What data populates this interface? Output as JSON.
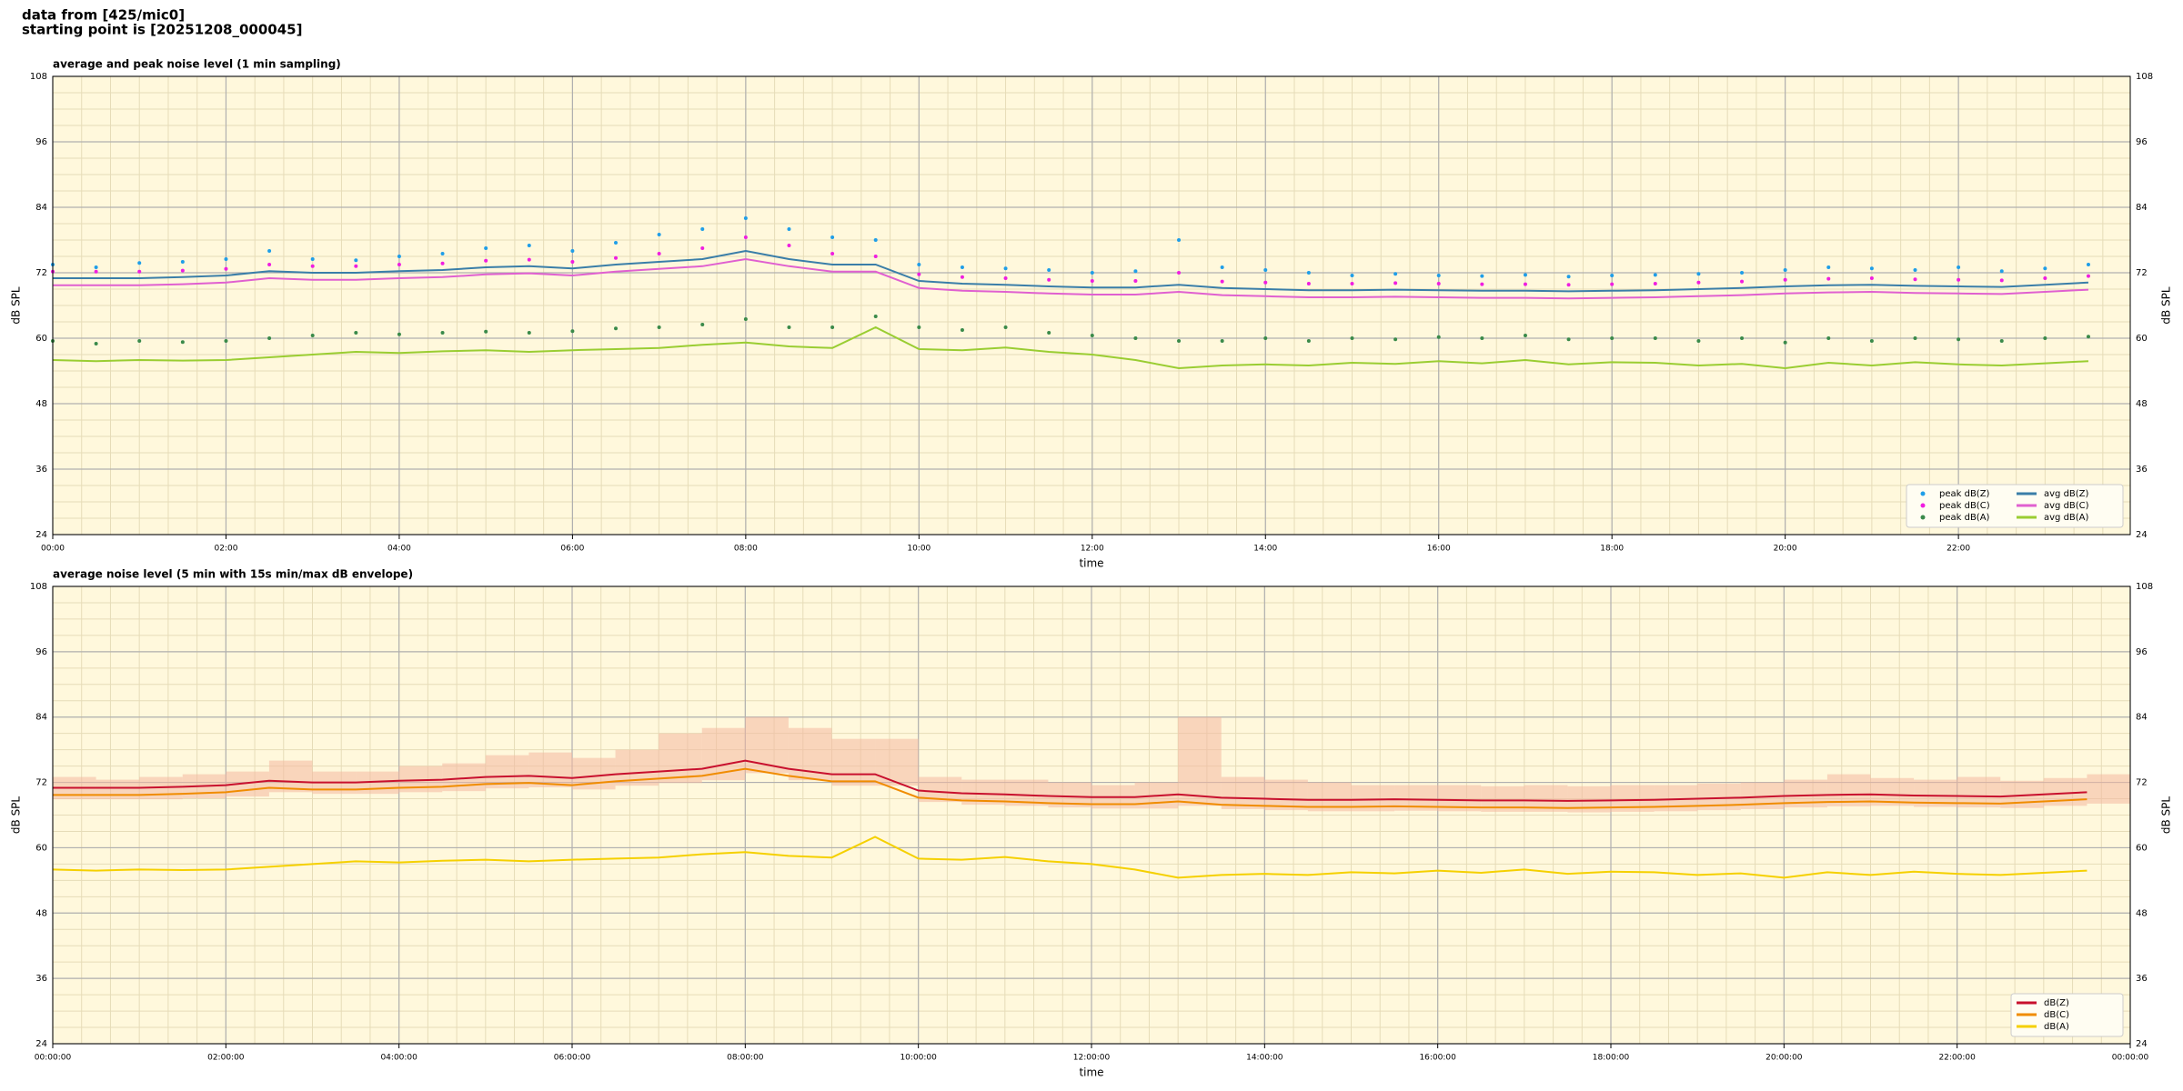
{
  "header": {
    "line1": "data from [425/mic0]",
    "line2": "starting point is [20251208_000045]"
  },
  "chart_data": [
    {
      "type": "line",
      "title": "average and peak noise level (1 min sampling)",
      "xlabel": "time",
      "ylabel": "dB SPL",
      "grid": true,
      "minor_grid": true,
      "legend": "lower right",
      "legend_columns": 2,
      "background": "#fff8dc",
      "x": [
        "00:00",
        "00:30",
        "01:00",
        "01:30",
        "02:00",
        "02:30",
        "03:00",
        "03:30",
        "04:00",
        "04:30",
        "05:00",
        "05:30",
        "06:00",
        "06:30",
        "07:00",
        "07:30",
        "08:00",
        "08:30",
        "09:00",
        "09:30",
        "10:00",
        "10:30",
        "11:00",
        "11:30",
        "12:00",
        "12:30",
        "13:00",
        "13:30",
        "14:00",
        "14:30",
        "15:00",
        "15:30",
        "16:00",
        "16:30",
        "17:00",
        "17:30",
        "18:00",
        "18:30",
        "19:00",
        "19:30",
        "20:00",
        "20:30",
        "21:00",
        "21:30",
        "22:00",
        "22:30",
        "23:00",
        "23:30"
      ],
      "xlim": [
        "00:00",
        "23:59"
      ],
      "xticks": [
        "00:00",
        "02:00",
        "04:00",
        "06:00",
        "08:00",
        "10:00",
        "12:00",
        "14:00",
        "16:00",
        "18:00",
        "20:00",
        "22:00"
      ],
      "ylim": [
        24,
        108
      ],
      "yticks": [
        24,
        36,
        48,
        60,
        72,
        84,
        96,
        108
      ],
      "series": [
        {
          "name": "peak dB(Z)",
          "kind": "scatter",
          "color": "#1f9ee8",
          "values": [
            73.5,
            73,
            73.8,
            74,
            74.5,
            76,
            74.5,
            74.3,
            75,
            75.5,
            76.5,
            77,
            76,
            77.5,
            79,
            80,
            82,
            80,
            78.5,
            78,
            73.5,
            73,
            72.8,
            72.5,
            72,
            72.3,
            78,
            73,
            72.5,
            72,
            71.5,
            71.8,
            71.5,
            71.4,
            71.6,
            71.3,
            71.5,
            71.6,
            71.8,
            72,
            72.5,
            73,
            72.8,
            72.5,
            73,
            72.3,
            72.8,
            73.5
          ]
        },
        {
          "name": "peak dB(C)",
          "kind": "scatter",
          "color": "#f01ee0",
          "values": [
            72.2,
            72.2,
            72.2,
            72.4,
            72.7,
            73.5,
            73.2,
            73.2,
            73.5,
            73.7,
            74.2,
            74.4,
            74,
            74.7,
            75.5,
            76.5,
            78.5,
            77,
            75.5,
            75,
            71.7,
            71.2,
            71,
            70.7,
            70.5,
            70.5,
            72,
            70.4,
            70.2,
            70,
            70,
            70.1,
            70,
            69.9,
            69.9,
            69.8,
            69.9,
            70,
            70.2,
            70.4,
            70.7,
            70.9,
            71,
            70.8,
            70.7,
            70.6,
            71,
            71.4
          ]
        },
        {
          "name": "peak dB(A)",
          "kind": "scatter",
          "color": "#3a8a4a",
          "values": [
            59.5,
            59,
            59.5,
            59.3,
            59.5,
            60,
            60.5,
            61,
            60.7,
            61,
            61.2,
            61,
            61.3,
            61.8,
            62,
            62.5,
            63.5,
            62,
            62,
            64,
            62,
            61.5,
            62,
            61,
            60.5,
            60,
            59.5,
            59.5,
            60,
            59.5,
            60,
            59.8,
            60.2,
            60,
            60.5,
            59.8,
            60,
            60,
            59.5,
            60,
            59.2,
            60,
            59.5,
            60,
            59.8,
            59.5,
            60,
            60.3
          ]
        },
        {
          "name": "avg dB(Z)",
          "kind": "line",
          "color": "#3a7ea8",
          "values": [
            71,
            71,
            71,
            71.2,
            71.5,
            72.3,
            72,
            72,
            72.3,
            72.5,
            73,
            73.2,
            72.8,
            73.5,
            74,
            74.5,
            76,
            74.5,
            73.5,
            73.5,
            70.5,
            70,
            69.8,
            69.5,
            69.3,
            69.3,
            69.8,
            69.2,
            69,
            68.8,
            68.8,
            68.9,
            68.8,
            68.7,
            68.7,
            68.6,
            68.7,
            68.8,
            69,
            69.2,
            69.5,
            69.7,
            69.8,
            69.6,
            69.5,
            69.4,
            69.8,
            70.2
          ]
        },
        {
          "name": "avg dB(C)",
          "kind": "line",
          "color": "#e060d0",
          "values": [
            69.7,
            69.7,
            69.7,
            69.9,
            70.2,
            71,
            70.7,
            70.7,
            71,
            71.2,
            71.7,
            71.9,
            71.5,
            72.2,
            72.7,
            73.2,
            74.5,
            73.2,
            72.2,
            72.2,
            69.2,
            68.7,
            68.5,
            68.2,
            68,
            68,
            68.5,
            67.9,
            67.7,
            67.5,
            67.5,
            67.6,
            67.5,
            67.4,
            67.4,
            67.3,
            67.4,
            67.5,
            67.7,
            67.9,
            68.2,
            68.4,
            68.5,
            68.3,
            68.2,
            68.1,
            68.5,
            68.9
          ]
        },
        {
          "name": "avg dB(A)",
          "kind": "line",
          "color": "#9acd32",
          "values": [
            56,
            55.8,
            56,
            55.9,
            56,
            56.5,
            57,
            57.5,
            57.3,
            57.6,
            57.8,
            57.5,
            57.8,
            58,
            58.2,
            58.8,
            59.2,
            58.5,
            58.2,
            62,
            58,
            57.8,
            58.3,
            57.5,
            57,
            56,
            54.5,
            55,
            55.2,
            55,
            55.5,
            55.3,
            55.8,
            55.4,
            56,
            55.2,
            55.6,
            55.5,
            55,
            55.3,
            54.5,
            55.5,
            55,
            55.6,
            55.2,
            55,
            55.4,
            55.8
          ]
        }
      ]
    },
    {
      "type": "line",
      "title": "average noise level (5 min with 15s min/max dB envelope)",
      "xlabel": "time",
      "ylabel": "dB SPL",
      "grid": true,
      "minor_grid": true,
      "legend": "lower right",
      "legend_columns": 1,
      "background": "#fff8dc",
      "x": [
        "00:00:00",
        "00:30:00",
        "01:00:00",
        "01:30:00",
        "02:00:00",
        "02:30:00",
        "03:00:00",
        "03:30:00",
        "04:00:00",
        "04:30:00",
        "05:00:00",
        "05:30:00",
        "06:00:00",
        "06:30:00",
        "07:00:00",
        "07:30:00",
        "08:00:00",
        "08:30:00",
        "09:00:00",
        "09:30:00",
        "10:00:00",
        "10:30:00",
        "11:00:00",
        "11:30:00",
        "12:00:00",
        "12:30:00",
        "13:00:00",
        "13:30:00",
        "14:00:00",
        "14:30:00",
        "15:00:00",
        "15:30:00",
        "16:00:00",
        "16:30:00",
        "17:00:00",
        "17:30:00",
        "18:00:00",
        "18:30:00",
        "19:00:00",
        "19:30:00",
        "20:00:00",
        "20:30:00",
        "21:00:00",
        "21:30:00",
        "22:00:00",
        "22:30:00",
        "23:00:00",
        "23:30:00"
      ],
      "xlim": [
        "00:00:00",
        "24:00:00"
      ],
      "xticks": [
        "00:00:00",
        "02:00:00",
        "04:00:00",
        "06:00:00",
        "08:00:00",
        "10:00:00",
        "12:00:00",
        "14:00:00",
        "16:00:00",
        "18:00:00",
        "20:00:00",
        "22:00:00",
        {
          "value": "24:00:00",
          "label": "00:00:00"
        }
      ],
      "ylim": [
        24,
        108
      ],
      "yticks": [
        24,
        36,
        48,
        60,
        72,
        84,
        96,
        108
      ],
      "envelope": {
        "color": "#f4b8a0",
        "low": [
          68.9,
          68.9,
          68.9,
          69.1,
          69.4,
          70.2,
          69.9,
          69.9,
          70.2,
          70.4,
          70.9,
          71.1,
          70.7,
          71.4,
          71.9,
          72.4,
          73.7,
          72.4,
          71.4,
          71.4,
          68.4,
          67.9,
          67.7,
          67.4,
          67.2,
          67.2,
          67.7,
          67.1,
          66.9,
          66.7,
          66.7,
          66.8,
          66.7,
          66.6,
          66.6,
          66.5,
          66.6,
          66.7,
          66.9,
          67.1,
          67.4,
          67.6,
          67.7,
          67.5,
          67.4,
          67.3,
          67.7,
          68.1
        ],
        "high": [
          73,
          72.5,
          73,
          73.5,
          74,
          76,
          74,
          74,
          75,
          75.5,
          77,
          77.5,
          76.5,
          78,
          81,
          82,
          84,
          82,
          80,
          80,
          73,
          72.5,
          72.5,
          72,
          71.5,
          72,
          84,
          73,
          72.5,
          72,
          71.5,
          71.5,
          71.5,
          71.3,
          71.5,
          71.3,
          71.5,
          71.5,
          71.8,
          72,
          72.5,
          73.5,
          72.8,
          72.5,
          73,
          72.3,
          72.8,
          73.5
        ]
      },
      "series": [
        {
          "name": "dB(Z)",
          "kind": "line",
          "color": "#c8102e",
          "values": [
            71,
            71,
            71,
            71.2,
            71.5,
            72.3,
            72,
            72,
            72.3,
            72.5,
            73,
            73.2,
            72.8,
            73.5,
            74,
            74.5,
            76,
            74.5,
            73.5,
            73.5,
            70.5,
            70,
            69.8,
            69.5,
            69.3,
            69.3,
            69.8,
            69.2,
            69,
            68.8,
            68.8,
            68.9,
            68.8,
            68.7,
            68.7,
            68.6,
            68.7,
            68.8,
            69,
            69.2,
            69.5,
            69.7,
            69.8,
            69.6,
            69.5,
            69.4,
            69.8,
            70.2
          ]
        },
        {
          "name": "dB(C)",
          "kind": "line",
          "color": "#f08c00",
          "values": [
            69.7,
            69.7,
            69.7,
            69.9,
            70.2,
            71,
            70.7,
            70.7,
            71,
            71.2,
            71.7,
            71.9,
            71.5,
            72.2,
            72.7,
            73.2,
            74.5,
            73.2,
            72.2,
            72.2,
            69.2,
            68.7,
            68.5,
            68.2,
            68,
            68,
            68.5,
            67.9,
            67.7,
            67.5,
            67.5,
            67.6,
            67.5,
            67.4,
            67.4,
            67.3,
            67.4,
            67.5,
            67.7,
            67.9,
            68.2,
            68.4,
            68.5,
            68.3,
            68.2,
            68.1,
            68.5,
            68.9
          ]
        },
        {
          "name": "dB(A)",
          "kind": "line",
          "color": "#f5d000",
          "values": [
            56,
            55.8,
            56,
            55.9,
            56,
            56.5,
            57,
            57.5,
            57.3,
            57.6,
            57.8,
            57.5,
            57.8,
            58,
            58.2,
            58.8,
            59.2,
            58.5,
            58.2,
            62,
            58,
            57.8,
            58.3,
            57.5,
            57,
            56,
            54.5,
            55,
            55.2,
            55,
            55.5,
            55.3,
            55.8,
            55.4,
            56,
            55.2,
            55.6,
            55.5,
            55,
            55.3,
            54.5,
            55.5,
            55,
            55.6,
            55.2,
            55,
            55.4,
            55.8
          ]
        }
      ]
    }
  ]
}
